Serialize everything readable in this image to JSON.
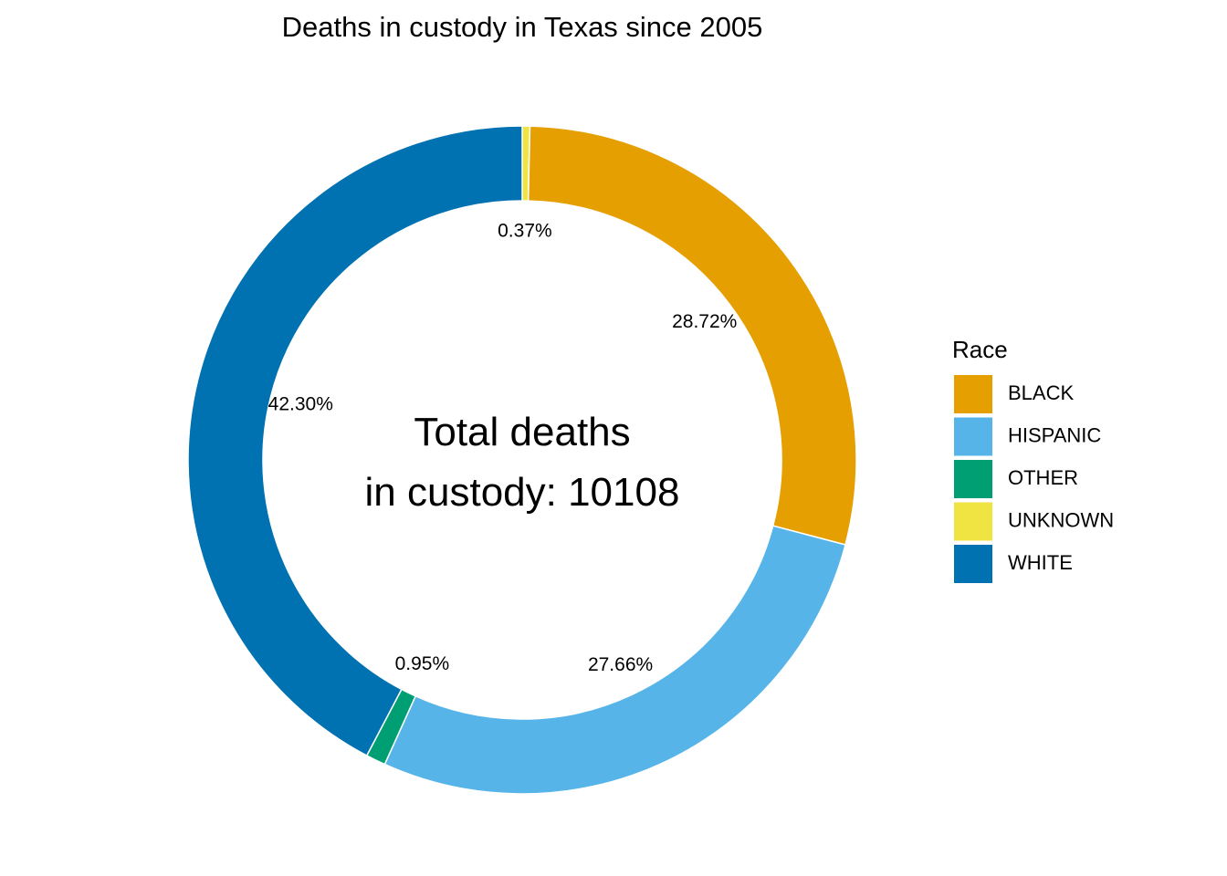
{
  "chart_data": {
    "type": "pie",
    "variant": "donut",
    "title": "Deaths in custody in Texas since 2005",
    "center_text": [
      "Total deaths",
      "in custody: 10108"
    ],
    "legend": {
      "title": "Race",
      "placement": "right"
    },
    "categories": [
      "BLACK",
      "HISPANIC",
      "OTHER",
      "UNKNOWN",
      "WHITE"
    ],
    "values": [
      28.72,
      27.66,
      0.95,
      0.37,
      42.3
    ],
    "labels": [
      "28.72%",
      "27.66%",
      "0.95%",
      "0.37%",
      "42.30%"
    ],
    "colors": [
      "#E69F00",
      "#56B4E9",
      "#009E73",
      "#F0E442",
      "#0072B2"
    ],
    "slice_order": [
      "UNKNOWN",
      "BLACK",
      "HISPANIC",
      "OTHER",
      "WHITE"
    ],
    "grid": false
  }
}
